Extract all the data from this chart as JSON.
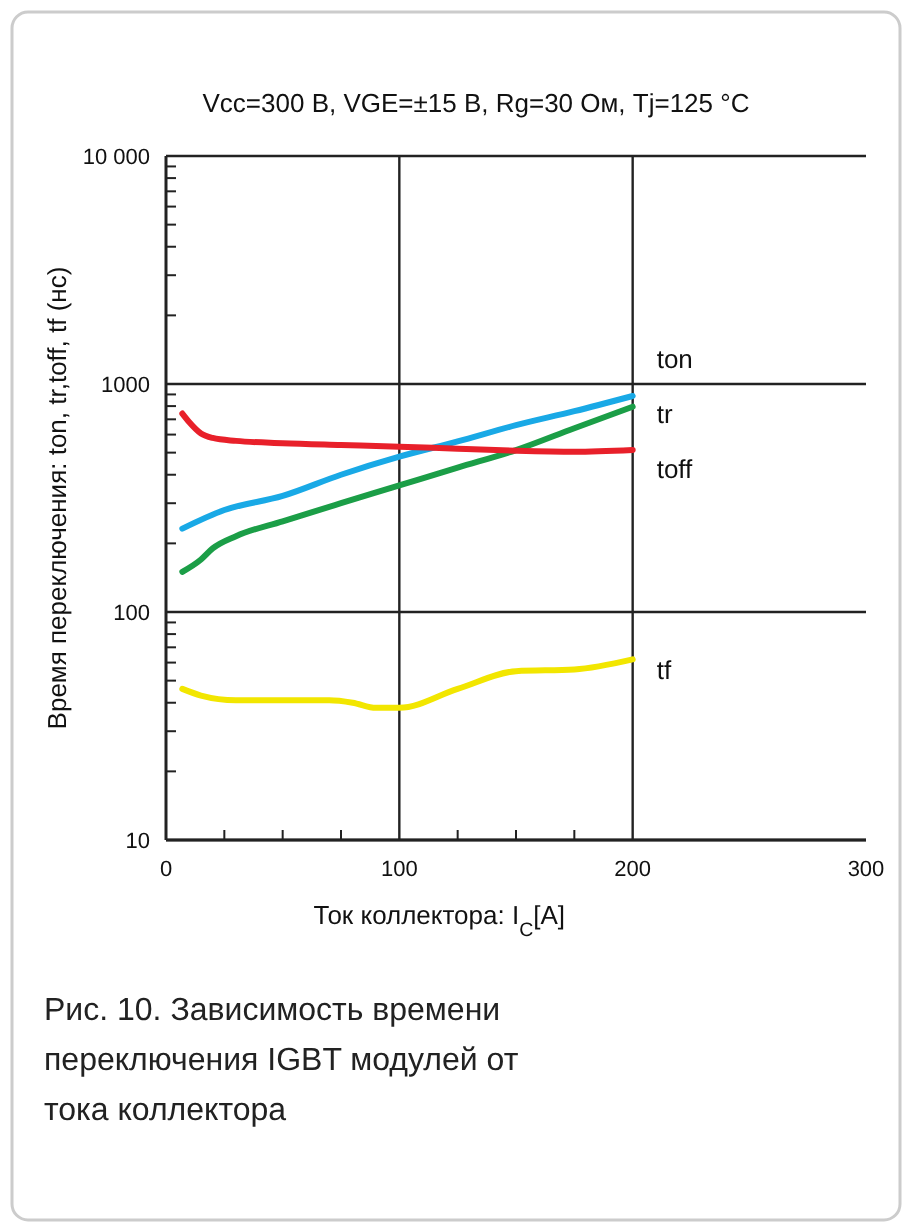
{
  "chart_data": {
    "type": "line",
    "title": "Vcc=300 В, VGE=±15 В, Rg=30 Ом, Tj=125 °C",
    "xlabel": "Ток коллектора: I$_{C}$[A]",
    "ylabel": "Время переключения: ton, tr,toff, tf  (нс)",
    "log": "y",
    "grid": true,
    "marker": "none",
    "line_style": "solid",
    "xlim": [
      0,
      300
    ],
    "xticks": [
      0,
      {
        "value": 25,
        "label": null
      },
      {
        "value": 50,
        "label": null
      },
      {
        "value": 75,
        "label": null
      },
      100,
      {
        "value": 125,
        "label": null
      },
      {
        "value": 150,
        "label": null
      },
      {
        "value": 175,
        "label": null
      },
      200,
      300
    ],
    "ylim": [
      10,
      10000
    ],
    "yticks": [
      10,
      {
        "value": 20,
        "label": null
      },
      {
        "value": 30,
        "label": null
      },
      {
        "value": 40,
        "label": null
      },
      {
        "value": 50,
        "label": null
      },
      {
        "value": 60,
        "label": null
      },
      {
        "value": 70,
        "label": null
      },
      {
        "value": 80,
        "label": null
      },
      {
        "value": 90,
        "label": null
      },
      100,
      {
        "value": 200,
        "label": null
      },
      {
        "value": 300,
        "label": null
      },
      {
        "value": 400,
        "label": null
      },
      {
        "value": 500,
        "label": null
      },
      {
        "value": 600,
        "label": null
      },
      {
        "value": 700,
        "label": null
      },
      {
        "value": 800,
        "label": null
      },
      {
        "value": 900,
        "label": null
      },
      1000,
      {
        "value": 2000,
        "label": null
      },
      {
        "value": 3000,
        "label": null
      },
      {
        "value": 4000,
        "label": null
      },
      {
        "value": 5000,
        "label": null
      },
      {
        "value": 6000,
        "label": null
      },
      {
        "value": 7000,
        "label": null
      },
      {
        "value": 8000,
        "label": null
      },
      {
        "value": 9000,
        "label": null
      },
      {
        "value": 10000,
        "label": "10 000"
      }
    ],
    "series": [
      {
        "name": "ton",
        "color": "#19a9e6",
        "x": [
          7,
          25,
          50,
          75,
          100,
          125,
          150,
          175,
          200
        ],
        "values": [
          232,
          280,
          323,
          400,
          480,
          560,
          660,
          760,
          886
        ]
      },
      {
        "name": "tr",
        "color": "#1b9e47",
        "x": [
          7,
          15,
          20,
          30,
          50,
          75,
          100,
          125,
          150,
          175,
          200
        ],
        "values": [
          150,
          170,
          190,
          215,
          250,
          300,
          359,
          430,
          513,
          640,
          795
        ]
      },
      {
        "name": "toff",
        "color": "#e8202a",
        "x": [
          7,
          10,
          15,
          20,
          30,
          50,
          75,
          100,
          125,
          150,
          175,
          200
        ],
        "values": [
          742,
          680,
          607,
          580,
          563,
          550,
          540,
          531,
          520,
          510,
          505,
          514
        ]
      },
      {
        "name": "tf",
        "color": "#f2e600",
        "x": [
          7,
          15,
          30,
          50,
          70,
          80,
          90,
          100,
          125,
          150,
          175,
          200
        ],
        "values": [
          46,
          43,
          41,
          41,
          41,
          40,
          38,
          38,
          46,
          55,
          56,
          62
        ]
      }
    ],
    "annotations": [
      "Рис. 10. Зависимость времени переключения IGBT модулей от тока коллектора"
    ]
  }
}
